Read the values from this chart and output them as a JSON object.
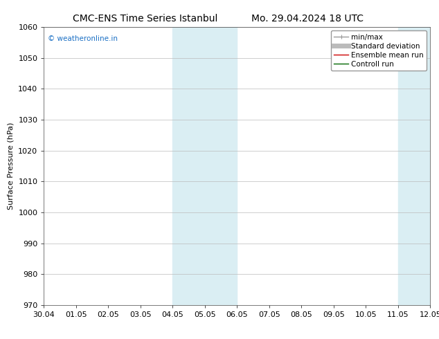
{
  "title_left": "CMC-ENS Time Series Istanbul",
  "title_right": "Mo. 29.04.2024 18 UTC",
  "ylabel": "Surface Pressure (hPa)",
  "ylim": [
    970,
    1060
  ],
  "yticks": [
    970,
    980,
    990,
    1000,
    1010,
    1020,
    1030,
    1040,
    1050,
    1060
  ],
  "xtick_labels": [
    "30.04",
    "01.05",
    "02.05",
    "03.05",
    "04.05",
    "05.05",
    "06.05",
    "07.05",
    "08.05",
    "09.05",
    "10.05",
    "11.05",
    "12.05"
  ],
  "xtick_positions": [
    0,
    1,
    2,
    3,
    4,
    5,
    6,
    7,
    8,
    9,
    10,
    11,
    12
  ],
  "shaded_bands": [
    {
      "x_start": 4,
      "x_end": 5,
      "color": "#daeef3"
    },
    {
      "x_start": 5,
      "x_end": 6,
      "color": "#daeef3"
    },
    {
      "x_start": 11,
      "x_end": 12,
      "color": "#daeef3"
    }
  ],
  "legend_items": [
    {
      "label": "min/max",
      "color": "#aaaaaa",
      "lw": 1
    },
    {
      "label": "Standard deviation",
      "color": "#bbbbbb",
      "lw": 5
    },
    {
      "label": "Ensemble mean run",
      "color": "#cc0000",
      "lw": 1
    },
    {
      "label": "Controll run",
      "color": "#006600",
      "lw": 1
    }
  ],
  "watermark": "© weatheronline.in",
  "watermark_color": "#1a6fc4",
  "background_color": "#ffffff",
  "plot_bg_color": "#ffffff",
  "grid_color": "#bbbbbb",
  "title_fontsize": 10,
  "axis_label_fontsize": 8,
  "tick_fontsize": 8,
  "legend_fontsize": 7.5
}
